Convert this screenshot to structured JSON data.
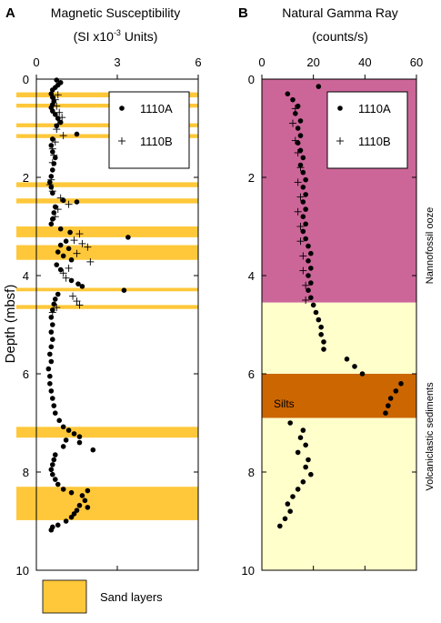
{
  "chart_data": [
    {
      "panel_letter": "A",
      "type": "scatter",
      "title": "Magnetic Susceptibility",
      "subtitle_main": "(SI x10",
      "subtitle_exp": "-3",
      "subtitle_end": " Units)",
      "xlabel": "",
      "ylabel": "Depth  (mbsf)",
      "xlim": [
        0,
        6
      ],
      "ylim": [
        0,
        10
      ],
      "y_inverted": true,
      "x_ticks": [
        0,
        3,
        6
      ],
      "y_ticks": [
        0,
        2,
        4,
        6,
        8,
        10
      ],
      "legend_position": "top-right",
      "legend": [
        {
          "name": "1110A",
          "marker": "dot"
        },
        {
          "name": "1110B",
          "marker": "plus"
        }
      ],
      "sand_layers_color": "#ffc83a",
      "sand_layers": [
        [
          0.27,
          0.37
        ],
        [
          0.5,
          0.58
        ],
        [
          0.9,
          0.98
        ],
        [
          1.12,
          1.2
        ],
        [
          2.1,
          2.2
        ],
        [
          2.43,
          2.53
        ],
        [
          3.0,
          3.22
        ],
        [
          3.38,
          3.68
        ],
        [
          4.25,
          4.32
        ],
        [
          4.6,
          4.68
        ],
        [
          7.08,
          7.3
        ],
        [
          8.3,
          8.98
        ]
      ],
      "series": [
        {
          "name": "1110A",
          "marker": "dot",
          "points": [
            [
              0.75,
              0.02
            ],
            [
              0.9,
              0.07
            ],
            [
              0.8,
              0.12
            ],
            [
              0.7,
              0.17
            ],
            [
              0.6,
              0.22
            ],
            [
              0.55,
              0.3
            ],
            [
              0.6,
              0.37
            ],
            [
              0.65,
              0.45
            ],
            [
              0.6,
              0.52
            ],
            [
              0.55,
              0.58
            ],
            [
              0.6,
              0.65
            ],
            [
              0.7,
              0.72
            ],
            [
              0.8,
              0.8
            ],
            [
              0.9,
              0.88
            ],
            [
              0.75,
              0.95
            ],
            [
              1.5,
              1.12
            ],
            [
              0.6,
              1.22
            ],
            [
              0.55,
              1.35
            ],
            [
              0.6,
              1.48
            ],
            [
              0.7,
              1.6
            ],
            [
              0.65,
              1.72
            ],
            [
              0.6,
              1.85
            ],
            [
              0.55,
              1.98
            ],
            [
              0.5,
              2.1
            ],
            [
              0.55,
              2.2
            ],
            [
              0.6,
              2.32
            ],
            [
              1.0,
              2.47
            ],
            [
              1.5,
              2.5
            ],
            [
              0.7,
              2.6
            ],
            [
              0.65,
              2.72
            ],
            [
              0.6,
              2.85
            ],
            [
              0.55,
              2.95
            ],
            [
              0.9,
              3.05
            ],
            [
              1.25,
              3.12
            ],
            [
              3.4,
              3.22
            ],
            [
              1.1,
              3.3
            ],
            [
              0.9,
              3.38
            ],
            [
              1.2,
              3.45
            ],
            [
              0.8,
              3.52
            ],
            [
              1.0,
              3.6
            ],
            [
              1.3,
              3.68
            ],
            [
              0.75,
              3.78
            ],
            [
              0.9,
              3.88
            ],
            [
              1.3,
              4.1
            ],
            [
              1.55,
              4.17
            ],
            [
              1.7,
              4.22
            ],
            [
              3.25,
              4.3
            ],
            [
              0.8,
              4.38
            ],
            [
              0.7,
              4.48
            ],
            [
              0.65,
              4.58
            ],
            [
              0.6,
              4.7
            ],
            [
              0.55,
              4.85
            ],
            [
              0.6,
              5.0
            ],
            [
              0.55,
              5.15
            ],
            [
              0.6,
              5.3
            ],
            [
              0.55,
              5.45
            ],
            [
              0.5,
              5.6
            ],
            [
              0.55,
              5.75
            ],
            [
              0.45,
              5.9
            ],
            [
              0.5,
              6.05
            ],
            [
              0.5,
              6.2
            ],
            [
              0.55,
              6.35
            ],
            [
              0.6,
              6.5
            ],
            [
              0.65,
              6.65
            ],
            [
              0.7,
              6.8
            ],
            [
              0.85,
              6.95
            ],
            [
              1.0,
              7.08
            ],
            [
              1.2,
              7.15
            ],
            [
              1.4,
              7.22
            ],
            [
              1.6,
              7.28
            ],
            [
              1.1,
              7.35
            ],
            [
              1.6,
              7.4
            ],
            [
              1.0,
              7.48
            ],
            [
              2.1,
              7.55
            ],
            [
              0.7,
              7.65
            ],
            [
              0.65,
              7.75
            ],
            [
              0.6,
              7.85
            ],
            [
              0.55,
              7.95
            ],
            [
              0.6,
              8.05
            ],
            [
              0.7,
              8.15
            ],
            [
              0.8,
              8.25
            ],
            [
              1.0,
              8.35
            ],
            [
              1.3,
              8.42
            ],
            [
              1.9,
              8.38
            ],
            [
              1.7,
              8.48
            ],
            [
              1.8,
              8.58
            ],
            [
              1.6,
              8.68
            ],
            [
              1.9,
              8.72
            ],
            [
              1.5,
              8.78
            ],
            [
              1.4,
              8.85
            ],
            [
              1.3,
              8.92
            ],
            [
              1.1,
              9.0
            ],
            [
              0.8,
              9.08
            ],
            [
              0.6,
              9.12
            ],
            [
              0.55,
              9.18
            ]
          ]
        },
        {
          "name": "1110B",
          "marker": "plus",
          "points": [
            [
              0.8,
              0.32
            ],
            [
              0.7,
              0.42
            ],
            [
              0.75,
              0.55
            ],
            [
              0.85,
              0.68
            ],
            [
              0.95,
              0.78
            ],
            [
              0.8,
              0.92
            ],
            [
              0.75,
              1.02
            ],
            [
              1.0,
              1.15
            ],
            [
              0.7,
              1.28
            ],
            [
              0.6,
              1.42
            ],
            [
              0.65,
              1.55
            ],
            [
              0.6,
              1.7
            ],
            [
              0.55,
              2.05
            ],
            [
              0.5,
              2.15
            ],
            [
              0.6,
              2.28
            ],
            [
              0.9,
              2.42
            ],
            [
              1.2,
              2.55
            ],
            [
              0.8,
              2.65
            ],
            [
              0.7,
              2.8
            ],
            [
              1.6,
              3.15
            ],
            [
              1.4,
              3.28
            ],
            [
              1.7,
              3.35
            ],
            [
              1.9,
              3.42
            ],
            [
              1.5,
              3.55
            ],
            [
              2.0,
              3.72
            ],
            [
              1.2,
              3.85
            ],
            [
              1.0,
              3.95
            ],
            [
              1.1,
              4.05
            ],
            [
              1.35,
              4.42
            ],
            [
              1.5,
              4.52
            ],
            [
              1.6,
              4.6
            ],
            [
              0.75,
              4.65
            ],
            [
              0.6,
              4.75
            ]
          ]
        }
      ]
    },
    {
      "panel_letter": "B",
      "type": "scatter",
      "title": "Natural Gamma Ray",
      "subtitle": "(counts/s)",
      "xlabel": "",
      "ylabel": "",
      "xlim": [
        0,
        60
      ],
      "ylim": [
        0,
        10
      ],
      "y_inverted": true,
      "x_ticks": [
        0,
        20,
        40,
        60
      ],
      "y_ticks": [
        0,
        2,
        4,
        6,
        8,
        10
      ],
      "legend_position": "top-right",
      "legend": [
        {
          "name": "1110A",
          "marker": "dot"
        },
        {
          "name": "1110B",
          "marker": "plus"
        }
      ],
      "zones": [
        {
          "from": 0,
          "to": 4.55,
          "color": "#cc6699",
          "label": "Nannofossil ooze"
        },
        {
          "from": 4.55,
          "to": 6.0,
          "color": "#ffffcc",
          "label": "Volcaniclastic sediments"
        },
        {
          "from": 6.0,
          "to": 6.9,
          "color": "#cc6600",
          "label": "Silts"
        },
        {
          "from": 6.9,
          "to": 10,
          "color": "#ffffcc",
          "label": ""
        }
      ],
      "right_annotations": [
        "Nannofossil ooze",
        "Volcaniclastic sediments"
      ],
      "inline_annotation": "Silts",
      "series": [
        {
          "name": "1110A",
          "marker": "dot",
          "points": [
            [
              22,
              0.15
            ],
            [
              10,
              0.3
            ],
            [
              12,
              0.42
            ],
            [
              14,
              0.55
            ],
            [
              13,
              0.7
            ],
            [
              15,
              0.85
            ],
            [
              14,
              1.0
            ],
            [
              15,
              1.15
            ],
            [
              14,
              1.3
            ],
            [
              15,
              1.45
            ],
            [
              16,
              1.6
            ],
            [
              15,
              1.75
            ],
            [
              16,
              1.9
            ],
            [
              17,
              2.05
            ],
            [
              16,
              2.2
            ],
            [
              17,
              2.35
            ],
            [
              16,
              2.5
            ],
            [
              17,
              2.65
            ],
            [
              16,
              2.8
            ],
            [
              17,
              2.95
            ],
            [
              16,
              3.1
            ],
            [
              17,
              3.25
            ],
            [
              18,
              3.4
            ],
            [
              19,
              3.55
            ],
            [
              18,
              3.7
            ],
            [
              19,
              3.85
            ],
            [
              18,
              4.0
            ],
            [
              19,
              4.15
            ],
            [
              18,
              4.3
            ],
            [
              19,
              4.45
            ],
            [
              20,
              4.6
            ],
            [
              21,
              4.75
            ],
            [
              22,
              4.9
            ],
            [
              23,
              5.05
            ],
            [
              23,
              5.2
            ],
            [
              24,
              5.35
            ],
            [
              24,
              5.5
            ],
            [
              33,
              5.7
            ],
            [
              36,
              5.85
            ],
            [
              39,
              6.0
            ],
            [
              54,
              6.2
            ],
            [
              52,
              6.35
            ],
            [
              50,
              6.5
            ],
            [
              49,
              6.65
            ],
            [
              48,
              6.8
            ],
            [
              11,
              7.0
            ],
            [
              16,
              7.15
            ],
            [
              15,
              7.3
            ],
            [
              17,
              7.45
            ],
            [
              14,
              7.6
            ],
            [
              18,
              7.75
            ],
            [
              17,
              7.9
            ],
            [
              19,
              8.05
            ],
            [
              16,
              8.2
            ],
            [
              14,
              8.35
            ],
            [
              12,
              8.5
            ],
            [
              10,
              8.65
            ],
            [
              11,
              8.8
            ],
            [
              9,
              8.95
            ],
            [
              7,
              9.1
            ]
          ]
        },
        {
          "name": "1110B",
          "marker": "plus",
          "points": [
            [
              13,
              0.6
            ],
            [
              12,
              0.9
            ],
            [
              13,
              1.25
            ],
            [
              14,
              1.5
            ],
            [
              15,
              1.8
            ],
            [
              14,
              2.1
            ],
            [
              15,
              2.4
            ],
            [
              14,
              2.7
            ],
            [
              15,
              3.0
            ],
            [
              15,
              3.3
            ],
            [
              16,
              3.6
            ],
            [
              16,
              3.9
            ],
            [
              17,
              4.2
            ],
            [
              17,
              4.5
            ]
          ]
        }
      ]
    }
  ],
  "bottom_legend": {
    "label": "Sand layers",
    "color": "#ffc83a"
  }
}
